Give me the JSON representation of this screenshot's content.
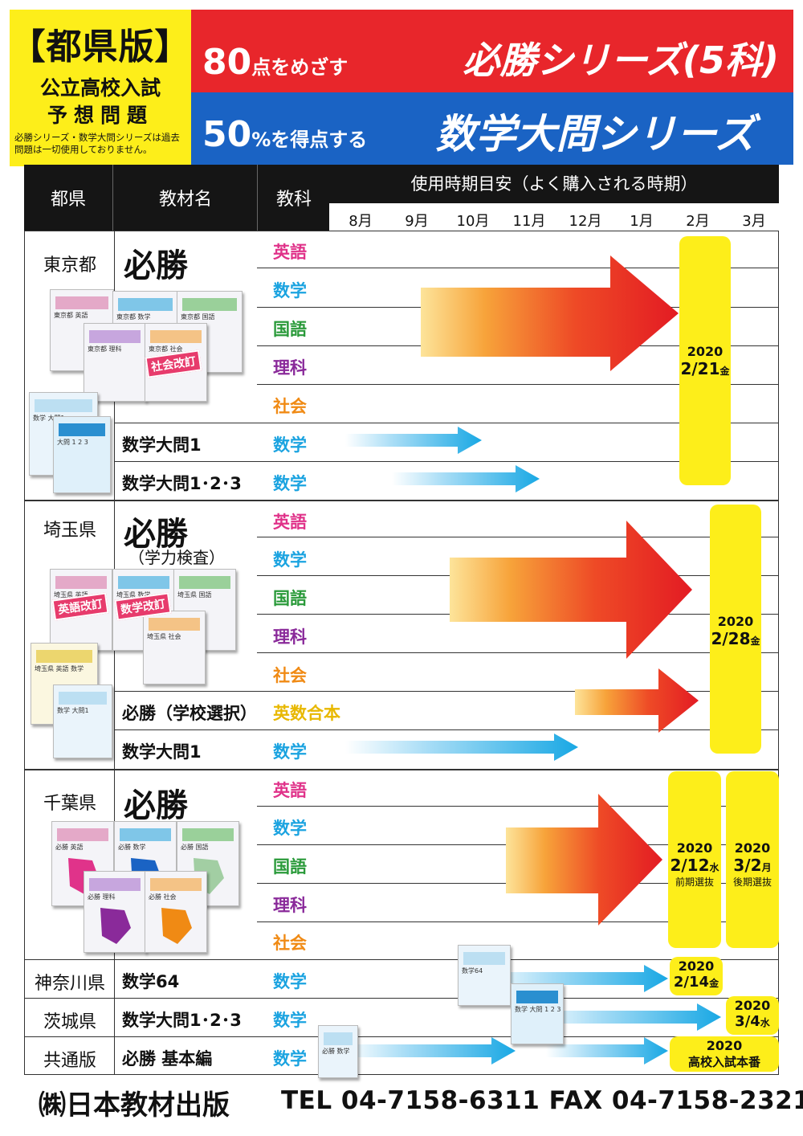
{
  "header": {
    "edition": "【都県版】",
    "subtitle1": "公立高校入試",
    "subtitle2": "予想問題",
    "note": "必勝シリーズ・数学大問シリーズは過去問題は一切使用しておりません。",
    "banner1_num": "80",
    "banner1_text": "点をめざす",
    "banner1_title": "必勝シリーズ(5科)",
    "banner2_num": "50",
    "banner2_text": "%を得点する",
    "banner2_title": "数学大問シリーズ"
  },
  "table": {
    "col_pref": "都県",
    "col_material": "教材名",
    "col_subject": "教科",
    "col_period": "使用時期目安（よく購入される時期）",
    "months": [
      "8月",
      "9月",
      "10月",
      "11月",
      "12月",
      "1月",
      "2月",
      "3月"
    ]
  },
  "tokyo": {
    "pref": "東京都",
    "main_material": "必勝",
    "subjects": [
      "英語",
      "数学",
      "国語",
      "理科",
      "社会"
    ],
    "row2_material": "数学大問1",
    "row2_subject": "数学",
    "row3_material": "数学大問1･2･3",
    "row3_subject": "数学",
    "exam_year": "2020",
    "exam_date": "2/21",
    "exam_weekday": "金",
    "stamp": "社会改訂",
    "books": [
      "東京都 英語",
      "東京都 数学",
      "東京都 国語",
      "東京都 理科",
      "東京都 社会",
      "数学 大問1",
      "大問 1 2 3"
    ]
  },
  "saitama": {
    "pref": "埼玉県",
    "main_material": "必勝",
    "main_sub": "（学力検査）",
    "subjects": [
      "英語",
      "数学",
      "国語",
      "理科",
      "社会"
    ],
    "row2_material": "必勝（学校選択）",
    "row2_subject": "英数合本",
    "row3_material": "数学大問1",
    "row3_subject": "数学",
    "exam_year": "2020",
    "exam_date": "2/28",
    "exam_weekday": "金",
    "stamp1": "英語改訂",
    "stamp2": "数学改訂",
    "books": [
      "埼玉県 英語",
      "埼玉県 数学",
      "埼玉県 国語",
      "埼玉県 社会",
      "埼玉県 英語 数学",
      "数学 大問1"
    ]
  },
  "chiba": {
    "pref": "千葉県",
    "main_material": "必勝",
    "subjects": [
      "英語",
      "数学",
      "国語",
      "理科",
      "社会"
    ],
    "exam1_year": "2020",
    "exam1_date": "2/12",
    "exam1_weekday": "水",
    "exam1_note": "前期選抜",
    "exam2_year": "2020",
    "exam2_date": "3/2",
    "exam2_weekday": "月",
    "exam2_note": "後期選抜",
    "books": [
      "必勝 英語",
      "必勝 数学",
      "必勝 国語",
      "必勝 理科",
      "必勝 社会"
    ]
  },
  "kanagawa": {
    "pref": "神奈川県",
    "material": "数学64",
    "subject": "数学",
    "exam_year": "2020",
    "exam_date": "2/14",
    "exam_weekday": "金",
    "book": "数学64"
  },
  "ibaraki": {
    "pref": "茨城県",
    "material": "数学大問1･2･3",
    "subject": "数学",
    "exam_year": "2020",
    "exam_date": "3/4",
    "exam_weekday": "水",
    "book": "数学 大問 1 2 3"
  },
  "common": {
    "pref": "共通版",
    "material": "必勝 基本編",
    "subject": "数学",
    "exam_year": "2020",
    "exam_label": "高校入試本番",
    "book": "必勝 数学"
  },
  "colors": {
    "red": "#e8262b",
    "blue": "#1a63c4",
    "yellow": "#fdee1a",
    "english": "#e0338a",
    "math": "#1ba3e0",
    "japanese": "#2a9a3a",
    "science": "#8a2a9a",
    "social": "#f08a14"
  },
  "footer": {
    "company": "㈱日本教材出版",
    "contact": "TEL 04-7158-6311  FAX 04-7158-2321"
  }
}
